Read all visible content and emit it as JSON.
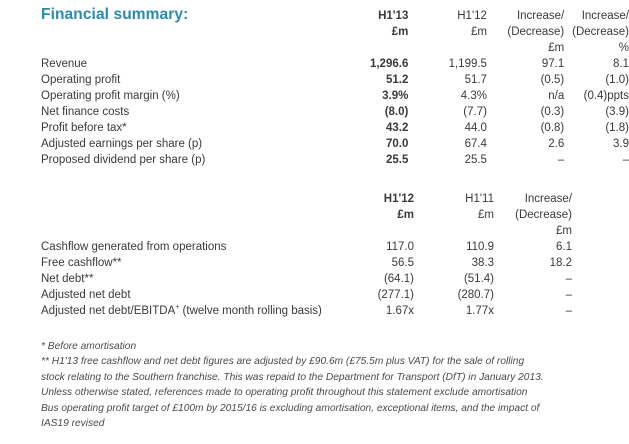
{
  "title": "Financial summary:",
  "table1": {
    "headers": [
      [
        "",
        "H1'13",
        "H1'12",
        "Increase/",
        "Increase/"
      ],
      [
        "",
        "£m",
        "£m",
        "(Decrease)",
        "(Decrease)"
      ],
      [
        "",
        "",
        "",
        "£m",
        "%"
      ]
    ],
    "rows": [
      [
        "Revenue",
        "1,296.6",
        "1,199.5",
        "97.1",
        "8.1"
      ],
      [
        "Operating profit",
        "51.2",
        "51.7",
        "(0.5)",
        "(1.0)"
      ],
      [
        "Operating profit margin (%)",
        "3.9%",
        "4.3%",
        "n/a",
        "(0.4)ppts"
      ],
      [
        "Net finance costs",
        "(8.0)",
        "(7.7)",
        "(0.3)",
        "(3.9)"
      ],
      [
        "Profit before tax*",
        "43.2",
        "44.0",
        "(0.8)",
        "(1.8)"
      ],
      [
        "Adjusted earnings per share (p)",
        "70.0",
        "67.4",
        "2.6",
        "3.9"
      ],
      [
        "Proposed dividend per share (p)",
        "25.5",
        "25.5",
        "–",
        "–"
      ]
    ]
  },
  "table2": {
    "headers": [
      [
        "",
        "H1'12",
        "H1'11",
        "Increase/"
      ],
      [
        "",
        "£m",
        "£m",
        "(Decrease)"
      ],
      [
        "",
        "",
        "",
        "£m"
      ]
    ],
    "rows": [
      [
        "Cashflow generated from operations",
        "117.0",
        "110.9",
        "6.1"
      ],
      [
        "Free cashflow**",
        "56.5",
        "38.3",
        "18.2"
      ],
      [
        "Net debt**",
        "(64.1)",
        "(51.4)",
        "–"
      ],
      [
        "Adjusted net debt",
        "(277.1)",
        "(280.7)",
        "–"
      ],
      [
        "Adjusted net debt/EBITDA",
        "1.67x",
        "1.77x",
        "–"
      ]
    ],
    "ebitda_sup": "+",
    "ebitda_suffix": " (twelve month rolling basis)"
  },
  "notes": [
    "* Before amortisation",
    "** H1'13 free cashflow and net debt figures are adjusted by £90.6m (£75.5m plus VAT) for the sale of rolling",
    "stock relating to the Southern franchise. This was repaid to the Department for Transport (DfT) in January 2013.",
    "Unless otherwise stated, references made to operating profit throughout this statement exclude amortisation",
    "Bus operating profit target of £100m by 2015/16 is excluding amortisation, exceptional items, and the impact of",
    "IAS19 revised"
  ]
}
